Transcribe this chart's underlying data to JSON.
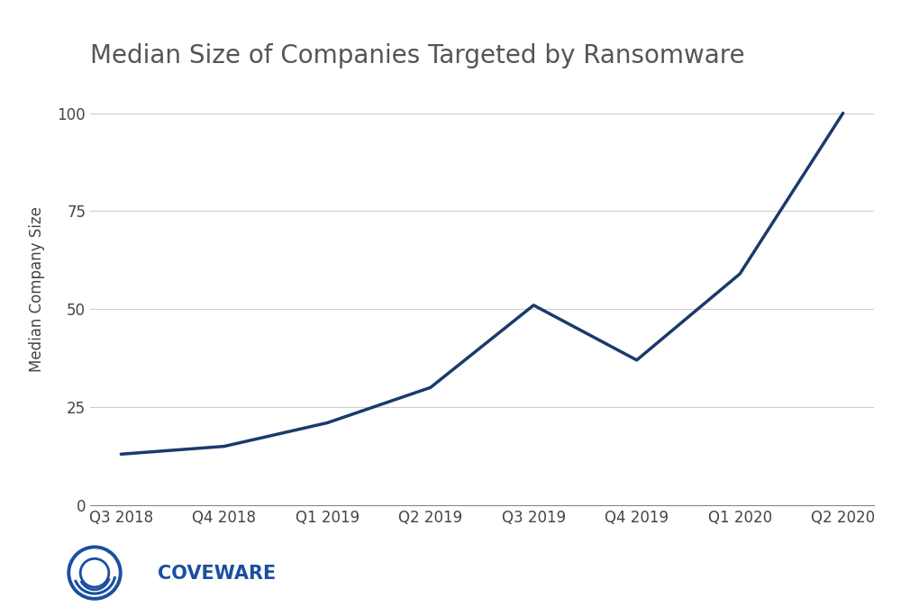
{
  "title": "Median Size of Companies Targeted by Ransomware",
  "xlabel": "",
  "ylabel": "Median Company Size",
  "categories": [
    "Q3 2018",
    "Q4 2018",
    "Q1 2019",
    "Q2 2019",
    "Q3 2019",
    "Q4 2019",
    "Q1 2020",
    "Q2 2020"
  ],
  "values": [
    13,
    15,
    21,
    30,
    51,
    37,
    59,
    100
  ],
  "line_color": "#1a3a6b",
  "line_width": 2.5,
  "ylim": [
    0,
    110
  ],
  "yticks": [
    0,
    25,
    50,
    75,
    100
  ],
  "background_color": "#ffffff",
  "grid_color": "#cccccc",
  "title_fontsize": 20,
  "label_fontsize": 12,
  "tick_fontsize": 12,
  "logo_text": "COVEWARE",
  "logo_color": "#1a4fa0",
  "logo_fontsize": 15
}
